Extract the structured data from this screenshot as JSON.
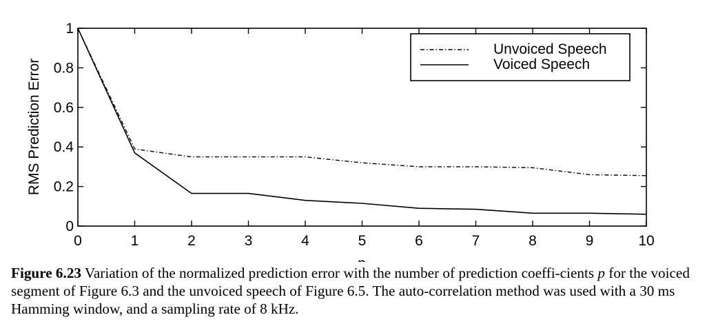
{
  "chart_data": {
    "type": "line",
    "xlabel": "p",
    "ylabel": "RMS Prediction Error",
    "xlim": [
      0,
      10
    ],
    "ylim": [
      0,
      1
    ],
    "x_ticks": [
      "0",
      "1",
      "2",
      "3",
      "4",
      "5",
      "6",
      "7",
      "8",
      "9",
      "10"
    ],
    "y_ticks": [
      "0",
      "0.2",
      "0.4",
      "0.6",
      "0.8",
      "1"
    ],
    "grid": false,
    "legend_position": "top-right",
    "x": [
      0,
      1,
      2,
      3,
      4,
      5,
      6,
      7,
      8,
      9,
      10
    ],
    "series": [
      {
        "name": "Unvoiced Speech",
        "style": "dash-dot",
        "color": "#000000",
        "values": [
          1.0,
          0.39,
          0.35,
          0.35,
          0.35,
          0.32,
          0.3,
          0.3,
          0.295,
          0.26,
          0.255
        ]
      },
      {
        "name": "Voiced Speech",
        "style": "solid",
        "color": "#000000",
        "values": [
          1.0,
          0.37,
          0.165,
          0.165,
          0.13,
          0.115,
          0.09,
          0.085,
          0.065,
          0.065,
          0.06
        ]
      }
    ]
  },
  "caption": {
    "label": "Figure 6.23",
    "text_before_var": " Variation of the normalized prediction error with the number of prediction coeffi-cients ",
    "var": "p",
    "text_after_var": " for the voiced segment of Figure 6.3 and the unvoiced speech of Figure 6.5. The auto-correlation method was used with a 30 ms Hamming window, and a sampling rate of 8 kHz."
  }
}
